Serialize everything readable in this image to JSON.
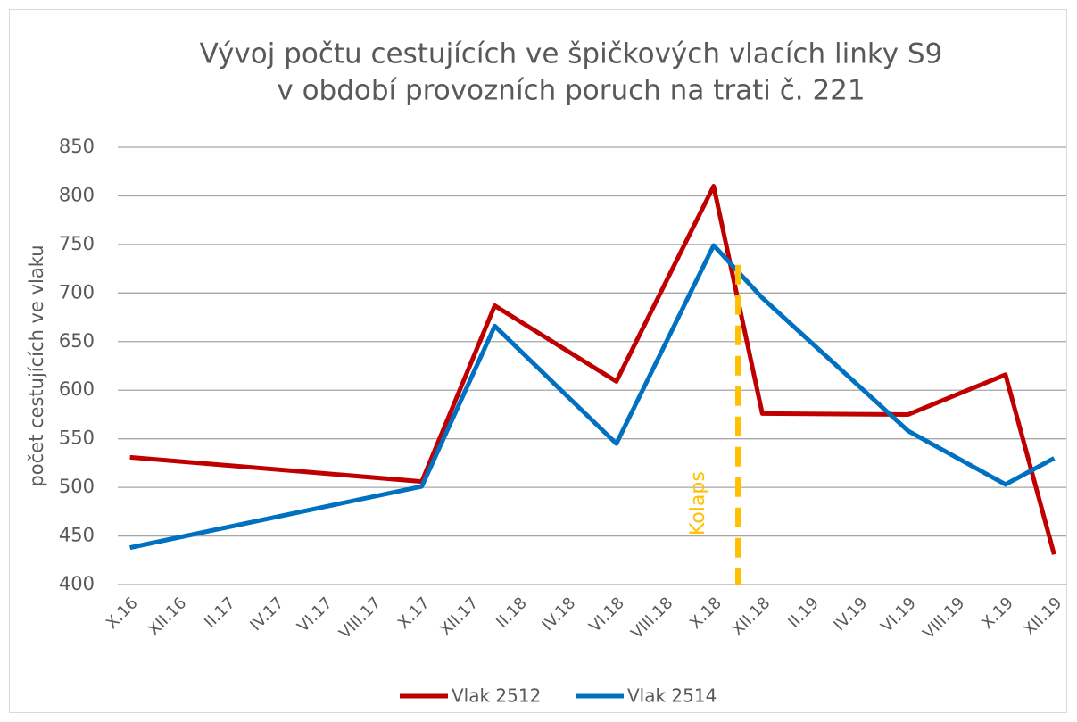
{
  "chart_data": {
    "type": "line",
    "title": [
      "Vývoj počtu cestujících ve špičkových vlacích linky S9",
      "v období provozních poruch na trati č. 221"
    ],
    "y_label": "počet cestujících ve vlaku",
    "categories": [
      "X.16",
      null,
      "XII.16",
      null,
      "II.17",
      null,
      "IV.17",
      null,
      "VI.17",
      null,
      "VIII.17",
      null,
      "X.17",
      null,
      "XII.17",
      null,
      "II.18",
      null,
      "IV.18",
      null,
      "VI.18",
      null,
      "VIII.18",
      null,
      "X.18",
      null,
      "XII.18",
      null,
      "II.19",
      null,
      "IV.19",
      null,
      "VI.19",
      null,
      "VIII.19",
      null,
      "X.19",
      null,
      "XII.19"
    ],
    "series": [
      {
        "name": "Vlak 2512",
        "color": "#c00000",
        "values": [
          531,
          null,
          null,
          null,
          null,
          null,
          null,
          null,
          null,
          null,
          null,
          null,
          506,
          null,
          null,
          687,
          null,
          null,
          null,
          null,
          609,
          null,
          null,
          null,
          810,
          null,
          576,
          null,
          null,
          null,
          null,
          null,
          575,
          null,
          null,
          null,
          616,
          null,
          431
        ]
      },
      {
        "name": "Vlak 2514",
        "color": "#0070c0",
        "values": [
          438,
          null,
          null,
          null,
          null,
          null,
          null,
          null,
          null,
          null,
          null,
          null,
          501,
          null,
          null,
          666,
          null,
          null,
          null,
          null,
          545,
          null,
          null,
          null,
          749,
          null,
          695,
          null,
          null,
          null,
          null,
          null,
          558,
          null,
          null,
          null,
          503,
          null,
          530
        ]
      }
    ],
    "connect_gaps": true,
    "annotation": {
      "text": "Kolaps",
      "x": 25,
      "y": [
        400,
        729
      ],
      "color": "#ffc000"
    },
    "ylim": [
      400,
      850
    ],
    "yticks": [
      400,
      450,
      500,
      550,
      600,
      650,
      700,
      750,
      800,
      850
    ],
    "grid": true,
    "legend": "bottom"
  }
}
